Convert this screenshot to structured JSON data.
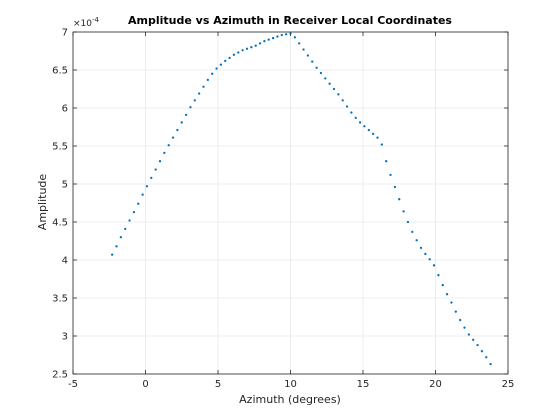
{
  "chart_data": {
    "type": "scatter",
    "title": "Amplitude vs Azimuth in Receiver Local Coordinates",
    "xlabel": "Azimuth (degrees)",
    "ylabel": "Amplitude",
    "xlim": [
      -5,
      25
    ],
    "ylim": [
      2.5,
      7
    ],
    "xticks": [
      -5,
      0,
      5,
      10,
      15,
      20,
      25
    ],
    "yticks": [
      2.5,
      3,
      3.5,
      4,
      4.5,
      5,
      5.5,
      6,
      6.5,
      7
    ],
    "xtick_labels": [
      "-5",
      "0",
      "5",
      "10",
      "15",
      "20",
      "25"
    ],
    "ytick_labels": [
      "2.5",
      "3",
      "3.5",
      "4",
      "4.5",
      "5",
      "5.5",
      "6",
      "6.5",
      "7"
    ],
    "y_multiplier_base": "×10",
    "y_multiplier_exponent": "-4",
    "grid": true,
    "marker_color": "#0072bd",
    "x": [
      -2.3,
      -2.0,
      -1.7,
      -1.4,
      -1.1,
      -0.8,
      -0.5,
      -0.2,
      0.1,
      0.4,
      0.7,
      1.0,
      1.3,
      1.6,
      1.9,
      2.2,
      2.5,
      2.8,
      3.1,
      3.4,
      3.7,
      4.0,
      4.3,
      4.6,
      4.9,
      5.2,
      5.5,
      5.8,
      6.1,
      6.4,
      6.7,
      7.0,
      7.3,
      7.6,
      7.9,
      8.2,
      8.5,
      8.8,
      9.1,
      9.4,
      9.7,
      10.0,
      10.3,
      10.6,
      10.9,
      11.2,
      11.5,
      11.8,
      12.1,
      12.4,
      12.7,
      13.0,
      13.3,
      13.6,
      13.9,
      14.2,
      14.5,
      14.8,
      15.1,
      15.4,
      15.7,
      16.0,
      16.3,
      16.6,
      16.9,
      17.2,
      17.5,
      17.8,
      18.1,
      18.4,
      18.7,
      19.0,
      19.3,
      19.6,
      19.9,
      20.2,
      20.5,
      20.8,
      21.1,
      21.4,
      21.7,
      22.0,
      22.3,
      22.6,
      22.9,
      23.2,
      23.5,
      23.8
    ],
    "y": [
      4.07,
      4.18,
      4.3,
      4.41,
      4.52,
      4.63,
      4.74,
      4.86,
      4.97,
      5.08,
      5.19,
      5.3,
      5.41,
      5.51,
      5.61,
      5.71,
      5.81,
      5.91,
      6.01,
      6.1,
      6.19,
      6.28,
      6.37,
      6.45,
      6.52,
      6.57,
      6.62,
      6.66,
      6.7,
      6.73,
      6.76,
      6.78,
      6.8,
      6.82,
      6.85,
      6.88,
      6.9,
      6.92,
      6.94,
      6.96,
      6.97,
      6.98,
      6.93,
      6.85,
      6.77,
      6.69,
      6.61,
      6.53,
      6.46,
      6.39,
      6.32,
      6.25,
      6.18,
      6.1,
      6.02,
      5.94,
      5.87,
      5.81,
      5.76,
      5.71,
      5.66,
      5.61,
      5.52,
      5.3,
      5.12,
      4.96,
      4.8,
      4.64,
      4.5,
      4.37,
      4.26,
      4.16,
      4.08,
      4.01,
      3.93,
      3.8,
      3.67,
      3.55,
      3.44,
      3.32,
      3.21,
      3.11,
      3.02,
      2.95,
      2.88,
      2.8,
      2.72,
      2.63
    ]
  }
}
